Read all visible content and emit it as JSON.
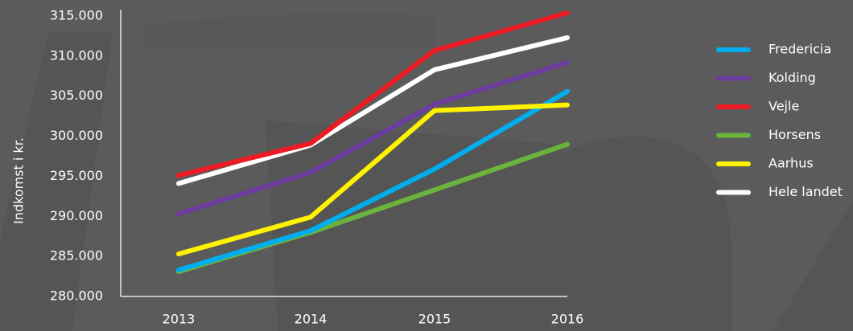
{
  "chart_data": {
    "type": "line",
    "y_label": "Indkomst i kr.",
    "categories": [
      "2013",
      "2014",
      "2015",
      "2016"
    ],
    "series": [
      {
        "name": "Fredericia",
        "color": "#00aeef",
        "values": [
          283300,
          288200,
          295900,
          305600
        ]
      },
      {
        "name": "Kolding",
        "color": "#6c3d9e",
        "values": [
          290300,
          295500,
          304000,
          309200
        ]
      },
      {
        "name": "Vejle",
        "color": "#ed1c24",
        "values": [
          295100,
          299100,
          310700,
          315400
        ]
      },
      {
        "name": "Horsens",
        "color": "#6ab43e",
        "values": [
          283100,
          288000,
          293300,
          299000
        ]
      },
      {
        "name": "Aarhus",
        "color": "#fff200",
        "values": [
          285300,
          289900,
          303200,
          303900
        ]
      },
      {
        "name": "Hele landet",
        "color": "#ffffff",
        "values": [
          294100,
          298900,
          308300,
          312300
        ]
      }
    ],
    "ylim": [
      280000,
      315000
    ],
    "yticks": [
      {
        "value": 280000,
        "label": "280.000"
      },
      {
        "value": 285000,
        "label": "285.000"
      },
      {
        "value": 290000,
        "label": "290.000"
      },
      {
        "value": 295000,
        "label": "295.000"
      },
      {
        "value": 300000,
        "label": "300.000"
      },
      {
        "value": 305000,
        "label": "305.000"
      },
      {
        "value": 310000,
        "label": "310.000"
      },
      {
        "value": 315000,
        "label": "315.000"
      }
    ],
    "legend": "right"
  }
}
